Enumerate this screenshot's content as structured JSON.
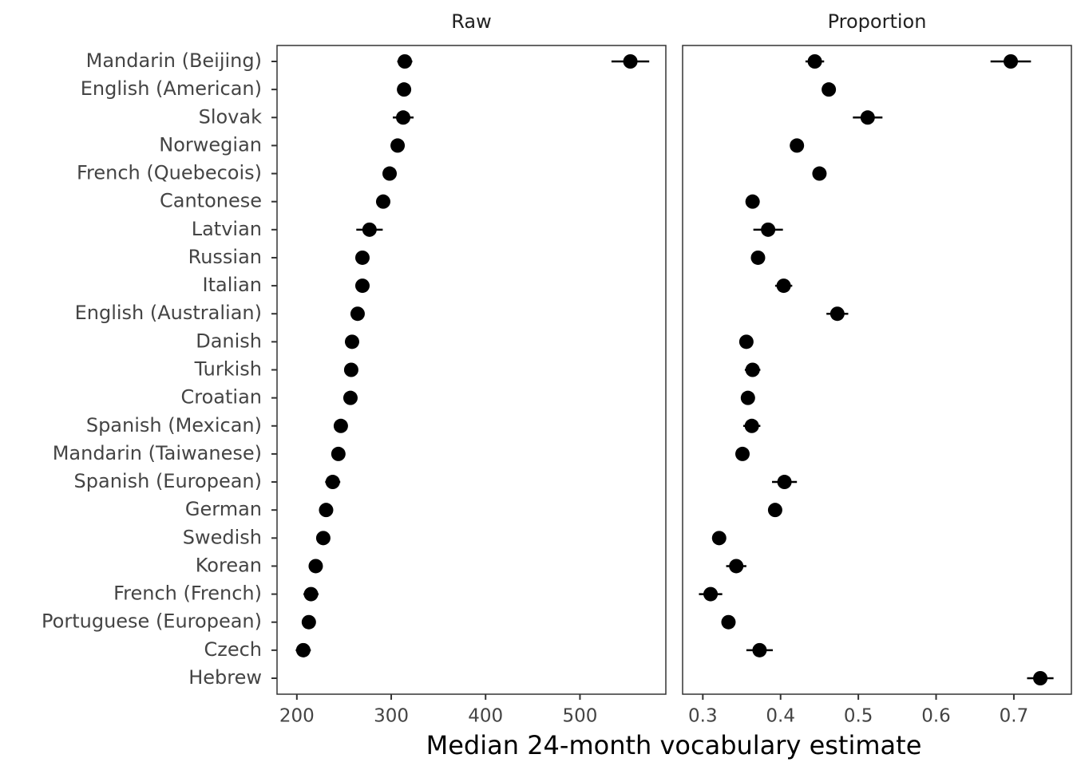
{
  "chart_data": {
    "type": "dot",
    "xlabel": "Median 24-month vocabulary estimate",
    "categories": [
      "Mandarin (Beijing)",
      "English (American)",
      "Slovak",
      "Norwegian",
      "French (Quebecois)",
      "Cantonese",
      "Latvian",
      "Russian",
      "Italian",
      "English (Australian)",
      "Danish",
      "Turkish",
      "Croatian",
      "Spanish (Mexican)",
      "Mandarin (Taiwanese)",
      "Spanish (European)",
      "German",
      "Swedish",
      "Korean",
      "French (French)",
      "Portuguese (European)",
      "Czech",
      "Hebrew"
    ],
    "color": "#000000",
    "panels": [
      {
        "title": "Raw",
        "xlim": [
          179,
          591
        ],
        "xticks": [
          200,
          300,
          400,
          500
        ],
        "series": [
          {
            "values": [
              314.4,
              313.6,
              312.7,
              306.8,
              298.3,
              291.5,
              277,
              269.5,
              269.5,
              264.4,
              258.5,
              257.6,
              256.8,
              246.6,
              244,
              238,
              231,
              228,
              220,
              215,
              212.7,
              206.8,
              null
            ],
            "errors": [
              8,
              3,
              11,
              3,
              3,
              3,
              14,
              3,
              4,
              3,
              3,
              4,
              3,
              4,
              3,
              8,
              3,
              3,
              6,
              8,
              3,
              8,
              null
            ]
          },
          {
            "values": [
              553.4,
              null,
              null,
              null,
              null,
              null,
              null,
              null,
              null,
              null,
              null,
              null,
              null,
              null,
              null,
              null,
              null,
              null,
              null,
              null,
              null,
              null,
              null
            ],
            "errors": [
              20,
              null,
              null,
              null,
              null,
              null,
              null,
              null,
              null,
              null,
              null,
              null,
              null,
              null,
              null,
              null,
              null,
              null,
              null,
              null,
              null,
              null,
              null
            ]
          }
        ]
      },
      {
        "title": "Proportion",
        "xlim": [
          0.274,
          0.774
        ],
        "xticks": [
          0.3,
          0.4,
          0.5,
          0.6,
          0.7
        ],
        "series": [
          {
            "values": [
              0.444,
              0.462,
              0.512,
              0.421,
              0.45,
              0.364,
              0.384,
              0.371,
              0.404,
              0.473,
              0.356,
              0.364,
              0.358,
              0.363,
              0.351,
              0.405,
              0.393,
              0.321,
              0.343,
              0.31,
              0.333,
              0.373,
              0.734
            ],
            "errors": [
              0.012,
              0.005,
              0.019,
              0.004,
              0.004,
              0.004,
              0.019,
              0.004,
              0.011,
              0.014,
              0.004,
              0.01,
              0.008,
              0.011,
              0.004,
              0.016,
              0.004,
              0.004,
              0.013,
              0.015,
              0.004,
              0.017,
              0.017
            ]
          },
          {
            "values": [
              0.696,
              null,
              null,
              null,
              null,
              null,
              null,
              null,
              null,
              null,
              null,
              null,
              null,
              null,
              null,
              null,
              null,
              null,
              null,
              null,
              null,
              null,
              null
            ],
            "errors": [
              0.026,
              null,
              null,
              null,
              null,
              null,
              null,
              null,
              null,
              null,
              null,
              null,
              null,
              null,
              null,
              null,
              null,
              null,
              null,
              null,
              null,
              null,
              null
            ]
          }
        ]
      }
    ]
  }
}
